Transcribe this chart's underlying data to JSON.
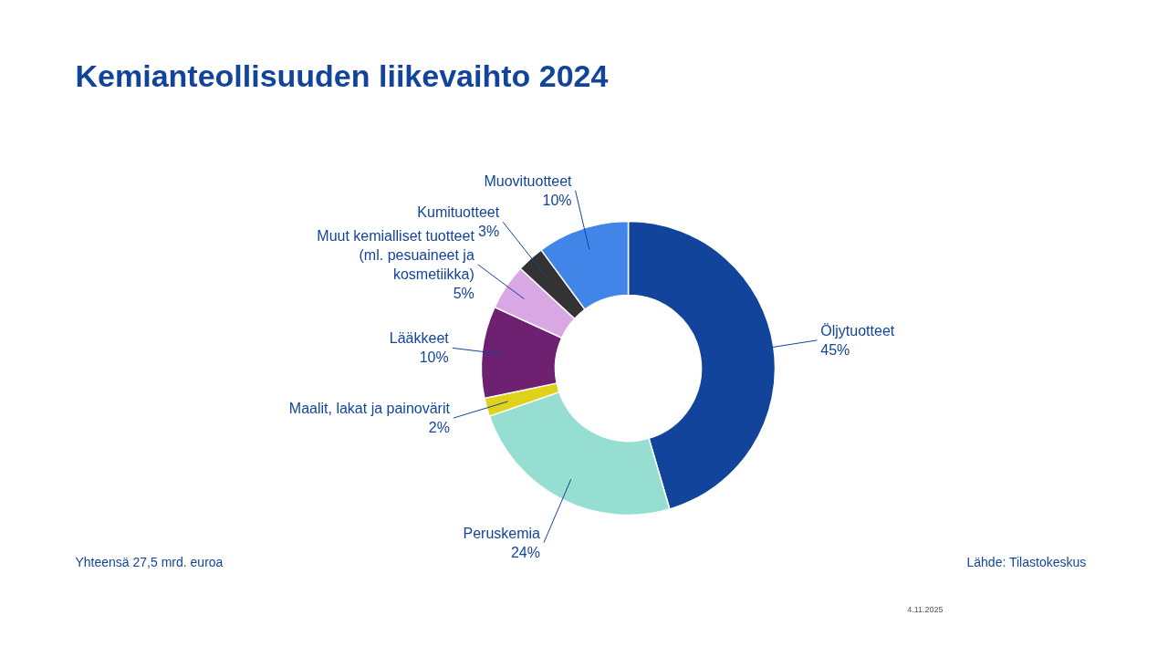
{
  "chart_data": {
    "type": "donut",
    "title": "Kemianteollisuuden liikevaihto 2024",
    "categories": [
      "Öljytuotteet",
      "Peruskemia",
      "Maalit, lakat ja painovärit",
      "Lääkkeet",
      "Muut kemialliset tuotteet (ml. pesuaineet ja kosmetiikka)",
      "Kumituotteet",
      "Muovituotteet"
    ],
    "values": [
      45,
      24,
      2,
      10,
      5,
      3,
      10
    ],
    "value_labels": [
      "45%",
      "24%",
      "2%",
      "10%",
      "5%",
      "3%",
      "10%"
    ],
    "colors": [
      "#11449a",
      "#96ddd2",
      "#e0d21a",
      "#6d2170",
      "#d9a8e4",
      "#333333",
      "#4285e8"
    ],
    "annotations": [
      "Yhteensä 27,5 mrd. euroa",
      "Lähde: Tilastokeskus",
      "4.11.2025"
    ]
  }
}
